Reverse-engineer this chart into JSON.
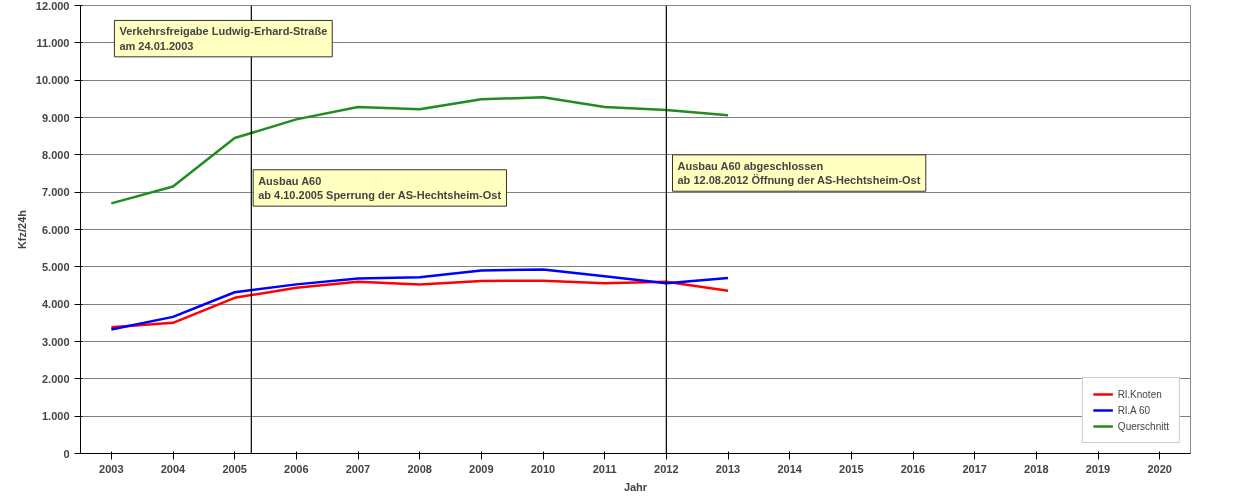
{
  "chart_data": {
    "type": "line",
    "xlabel": "Jahr",
    "ylabel": "Kfz/24h",
    "x": [
      2003,
      2004,
      2005,
      2006,
      2007,
      2008,
      2009,
      2010,
      2011,
      2012,
      2013
    ],
    "xlim": [
      2002.5,
      2020.5
    ],
    "xticks": [
      2003,
      2004,
      2005,
      2006,
      2007,
      2008,
      2009,
      2010,
      2011,
      2012,
      2013,
      2014,
      2015,
      2016,
      2017,
      2018,
      2019,
      2020
    ],
    "ylim": [
      0,
      12000
    ],
    "yticks": [
      {
        "value": 0,
        "label": "0"
      },
      {
        "value": 1000,
        "label": "1.000"
      },
      {
        "value": 2000,
        "label": "2.000"
      },
      {
        "value": 3000,
        "label": "3.000"
      },
      {
        "value": 4000,
        "label": "4.000"
      },
      {
        "value": 5000,
        "label": "5.000"
      },
      {
        "value": 6000,
        "label": "6.000"
      },
      {
        "value": 7000,
        "label": "7.000"
      },
      {
        "value": 8000,
        "label": "8.000"
      },
      {
        "value": 9000,
        "label": "9.000"
      },
      {
        "value": 10000,
        "label": "10.000"
      },
      {
        "value": 11000,
        "label": "11.000"
      },
      {
        "value": 12000,
        "label": "12.000"
      }
    ],
    "series": [
      {
        "name": "Rl.Knoten",
        "color": "#ff0000",
        "values": [
          3380,
          3500,
          4170,
          4440,
          4600,
          4530,
          4620,
          4630,
          4560,
          4600,
          4360
        ]
      },
      {
        "name": "Rl.A 60",
        "color": "#0000ff",
        "values": [
          3320,
          3660,
          4320,
          4530,
          4690,
          4720,
          4900,
          4930,
          4750,
          4560,
          4700
        ]
      },
      {
        "name": "Querschnitt",
        "color": "#228b22",
        "values": [
          6700,
          7150,
          8450,
          8950,
          9280,
          9220,
          9490,
          9540,
          9280,
          9200,
          9060
        ]
      }
    ],
    "ref_lines": [
      {
        "axis": "x",
        "value": 2005.27,
        "color": "#000000"
      },
      {
        "axis": "x",
        "value": 2012,
        "color": "#000000"
      }
    ],
    "annotations": [
      "Verkehrsfreigabe Ludwig-Erhard-Straße\nam 24.01.2003",
      "Ausbau A60\nab 4.10.2005 Sperrung der AS-Hechtsheim-Ost",
      "Ausbau A60 abgeschlossen\nab 12.08.2012 Öffnung der AS-Hechtsheim-Ost"
    ],
    "grid": "y",
    "legend": "bottom right",
    "marker": "none",
    "line_style": "solid"
  }
}
